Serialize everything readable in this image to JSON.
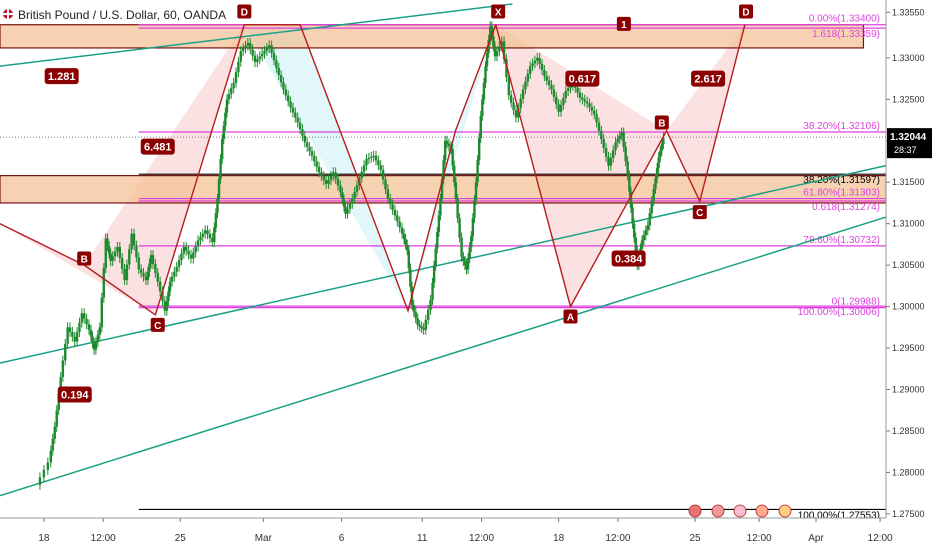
{
  "header": {
    "title": "British Pound / U.S. Dollar, 60, OANDA",
    "flag_icon": "gbp-usd-flag-icon"
  },
  "colors": {
    "background": "#ffffff",
    "candle": "#1e8a2e",
    "pattern_line": "#b71c1c",
    "pattern_fill_red": "#f8c9c9",
    "pattern_fill_cyan": "#c9f1f4",
    "zone_fill": "#f2bf93",
    "zone_border": "#7a1010",
    "fib_level": "#e040e0",
    "trend_line": "#1aa085",
    "label_bg": "#8b0000",
    "price_tag": "#000000"
  },
  "chart_data": {
    "type": "candlestick",
    "title": "British Pound / U.S. Dollar, 60, OANDA",
    "x_tick_labels": [
      "18",
      "12:00",
      "25",
      "Mar",
      "6",
      "11",
      "12:00",
      "18",
      "12:00",
      "25",
      "12:00",
      "Apr",
      "12:00"
    ],
    "x_tick_positions": [
      0.5,
      5.5,
      12,
      19,
      25.6,
      32.4,
      37.4,
      43.9,
      48.9,
      55.4,
      60.8,
      65.6,
      71
    ],
    "y_ticks": [
      1.3355,
      1.33,
      1.325,
      1.32,
      1.315,
      1.31,
      1.305,
      1.3,
      1.295,
      1.29,
      1.285,
      1.28,
      1.275
    ],
    "y_tick_labels": [
      "1.33550",
      "1.33000",
      "1.32500",
      "1.32000",
      "1.31500",
      "1.31000",
      "1.30500",
      "1.30000",
      "1.29500",
      "1.29000",
      "1.28500",
      "1.28000",
      "1.27500"
    ],
    "ylim": [
      1.2745,
      1.3365
    ],
    "xlim": [
      -3.2,
      71.5
    ],
    "current_price": {
      "price": 1.32044,
      "label": "1.32044",
      "timer": "28:37"
    },
    "ohlc_path": [
      [
        0,
        1.2785
      ],
      [
        1,
        1.2812
      ],
      [
        1.5,
        1.2855
      ],
      [
        2,
        1.2915
      ],
      [
        2.6,
        1.2975
      ],
      [
        3.2,
        1.2958
      ],
      [
        3.8,
        1.2992
      ],
      [
        4.4,
        1.2972
      ],
      [
        4.8,
        1.2948
      ],
      [
        5.3,
        1.2975
      ],
      [
        5.8,
        1.3082
      ],
      [
        6.2,
        1.3055
      ],
      [
        6.8,
        1.3072
      ],
      [
        7.4,
        1.3032
      ],
      [
        8,
        1.3088
      ],
      [
        8.6,
        1.3045
      ],
      [
        9.2,
        1.3032
      ],
      [
        9.6,
        1.3062
      ],
      [
        10.2,
        1.303
      ],
      [
        10.8,
        1.2995
      ],
      [
        11.2,
        1.303
      ],
      [
        11.8,
        1.3048
      ],
      [
        12.4,
        1.3072
      ],
      [
        13,
        1.3058
      ],
      [
        13.6,
        1.308
      ],
      [
        14.2,
        1.3092
      ],
      [
        14.8,
        1.3078
      ],
      [
        15.2,
        1.313
      ],
      [
        15.6,
        1.3202
      ],
      [
        16,
        1.325
      ],
      [
        16.6,
        1.327
      ],
      [
        17.2,
        1.3308
      ],
      [
        17.8,
        1.3318
      ],
      [
        18.4,
        1.3295
      ],
      [
        19,
        1.3305
      ],
      [
        19.6,
        1.3315
      ],
      [
        20.2,
        1.3288
      ],
      [
        20.8,
        1.3262
      ],
      [
        21.4,
        1.324
      ],
      [
        22,
        1.3222
      ],
      [
        22.6,
        1.3198
      ],
      [
        23.2,
        1.3182
      ],
      [
        23.8,
        1.3162
      ],
      [
        24.4,
        1.3148
      ],
      [
        25,
        1.3162
      ],
      [
        25.6,
        1.3138
      ],
      [
        26,
        1.3112
      ],
      [
        26.6,
        1.313
      ],
      [
        27.2,
        1.3155
      ],
      [
        27.8,
        1.3178
      ],
      [
        28.4,
        1.3182
      ],
      [
        29,
        1.3165
      ],
      [
        29.6,
        1.313
      ],
      [
        30.2,
        1.311
      ],
      [
        30.8,
        1.3088
      ],
      [
        31.2,
        1.3068
      ],
      [
        31.6,
        1.3002
      ],
      [
        32.1,
        1.2978
      ],
      [
        32.6,
        1.2972
      ],
      [
        33.2,
        1.3008
      ],
      [
        33.6,
        1.307
      ],
      [
        34,
        1.313
      ],
      [
        34.4,
        1.32
      ],
      [
        34.9,
        1.319
      ],
      [
        35.3,
        1.313
      ],
      [
        35.8,
        1.306
      ],
      [
        36.2,
        1.3045
      ],
      [
        36.6,
        1.3085
      ],
      [
        37,
        1.315
      ],
      [
        37.4,
        1.323
      ],
      [
        37.8,
        1.329
      ],
      [
        38.2,
        1.3338
      ],
      [
        38.6,
        1.3302
      ],
      [
        39.2,
        1.332
      ],
      [
        39.8,
        1.3255
      ],
      [
        40.4,
        1.3228
      ],
      [
        41,
        1.3262
      ],
      [
        41.6,
        1.329
      ],
      [
        42.2,
        1.33
      ],
      [
        42.8,
        1.3278
      ],
      [
        43.4,
        1.3262
      ],
      [
        44,
        1.3235
      ],
      [
        44.6,
        1.326
      ],
      [
        45.2,
        1.327
      ],
      [
        45.8,
        1.3252
      ],
      [
        46.4,
        1.3245
      ],
      [
        47,
        1.3232
      ],
      [
        47.6,
        1.3202
      ],
      [
        48.2,
        1.317
      ],
      [
        48.8,
        1.3198
      ],
      [
        49.3,
        1.321
      ],
      [
        49.8,
        1.3158
      ],
      [
        50.2,
        1.31
      ],
      [
        50.6,
        1.305
      ],
      [
        51,
        1.308
      ],
      [
        51.5,
        1.3098
      ],
      [
        52,
        1.3142
      ],
      [
        52.4,
        1.318
      ],
      [
        52.8,
        1.3204
      ]
    ],
    "horizontal_levels": [
      {
        "name": "fib-0-level",
        "price": 1.334,
        "label": "0.00%(1.33400)",
        "color": "#e040e0"
      },
      {
        "name": "fib-1618-level",
        "price": 1.33359,
        "label": "1.618(1.33359)",
        "color": "#e040e0"
      },
      {
        "name": "fib-382-upper-level",
        "price": 1.32106,
        "label": "38.20%(1.32106)",
        "color": "#e040e0"
      },
      {
        "name": "fib-382-level",
        "price": 1.31597,
        "label": "38.20%(1.31597)",
        "color": "#000000"
      },
      {
        "name": "fib-618-level",
        "price": 1.31303,
        "label": "61.80%(1.31303)",
        "color": "#e040e0"
      },
      {
        "name": "fib-0618-level",
        "price": 1.31274,
        "label": "0.618(1.31274)",
        "color": "#e040e0"
      },
      {
        "name": "fib-786-level",
        "price": 1.30732,
        "label": "78.60%(1.30732)",
        "color": "#e040e0"
      },
      {
        "name": "fib-100-level",
        "price": 1.30006,
        "label": "100.00%(1.30006)",
        "color": "#e040e0"
      },
      {
        "name": "fib-0-lower-level",
        "price": 1.29988,
        "label": "0(1.29988)",
        "color": "#e040e0"
      },
      {
        "name": "fib-100-bottom-level",
        "price": 1.27553,
        "label": "100.00%(1.27553)",
        "color": "#000000"
      }
    ],
    "zones": [
      {
        "name": "upper-resistance-zone",
        "x0": -3.2,
        "x1": 69.6,
        "top": 1.334,
        "bottom": 1.3312
      },
      {
        "name": "mid-support-zone",
        "x0": -3.2,
        "x1": 71.5,
        "top": 1.3158,
        "bottom": 1.3125
      }
    ],
    "trend_lines": [
      {
        "name": "upper-trend-line",
        "x0": -3.2,
        "y0": 1.329,
        "x1": 40.0,
        "y1": 1.3365
      },
      {
        "name": "middle-trend-line",
        "x0": -3.2,
        "y0": 1.2932,
        "x1": 71.5,
        "y1": 1.317
      },
      {
        "name": "lower-trend-line",
        "x0": -3.2,
        "y0": 1.2772,
        "x1": 71.5,
        "y1": 1.3108
      }
    ],
    "patterns": [
      {
        "name": "left-xabcd-pattern",
        "color": "#f8c9c9",
        "points": [
          [
            -3.2,
            1.31
          ],
          [
            3.9,
            1.305
          ],
          [
            9.9,
            1.299
          ],
          [
            17.4,
            1.334
          ]
        ],
        "labels": [
          "B",
          "C",
          "D"
        ],
        "ratios": [
          {
            "text": "0.194",
            "at": [
              3.1,
              1.2894
            ]
          },
          {
            "text": "6.481",
            "at": [
              10.1,
              1.3193
            ]
          },
          {
            "text": "1.281",
            "at": [
              2.0,
              1.3278
            ]
          }
        ]
      },
      {
        "name": "middle-butterfly-pattern",
        "color": "#c9f1f4",
        "points": [
          [
            17.4,
            1.334
          ],
          [
            22.1,
            1.334
          ],
          [
            31.2,
            1.2995
          ],
          [
            35.2,
            1.3212
          ],
          [
            38.6,
            1.334
          ]
        ],
        "labels": [
          "D",
          "X"
        ],
        "ratios": []
      },
      {
        "name": "right-harmonic-pattern",
        "color": "#f8c9c9",
        "points": [
          [
            38.6,
            1.334
          ],
          [
            44.9,
            1.3
          ],
          [
            53.0,
            1.3212
          ],
          [
            55.8,
            1.3127
          ],
          [
            59.6,
            1.334
          ]
        ],
        "labels": [
          "A",
          "B",
          "C",
          "D"
        ],
        "ratios": [
          {
            "text": "0.617",
            "at": [
              45.9,
              1.3275
            ]
          },
          {
            "text": "0.384",
            "at": [
              49.8,
              1.3058
            ]
          },
          {
            "text": "2.617",
            "at": [
              56.5,
              1.3275
            ]
          }
        ]
      }
    ],
    "point_labels": [
      {
        "text": "D",
        "x": 17.4,
        "price": 1.3356
      },
      {
        "text": "B",
        "x": 3.9,
        "price": 1.3058
      },
      {
        "text": "C",
        "x": 10.1,
        "price": 1.2978
      },
      {
        "text": "X",
        "x": 38.8,
        "price": 1.3356
      },
      {
        "text": "A",
        "x": 44.9,
        "price": 1.2988
      },
      {
        "text": "B",
        "x": 52.6,
        "price": 1.3222
      },
      {
        "text": "C",
        "x": 55.8,
        "price": 1.3114
      },
      {
        "text": "D",
        "x": 59.7,
        "price": 1.3356
      },
      {
        "text": "1",
        "x": 49.4,
        "price": 1.3341
      }
    ],
    "grid": false,
    "legend": "none"
  }
}
